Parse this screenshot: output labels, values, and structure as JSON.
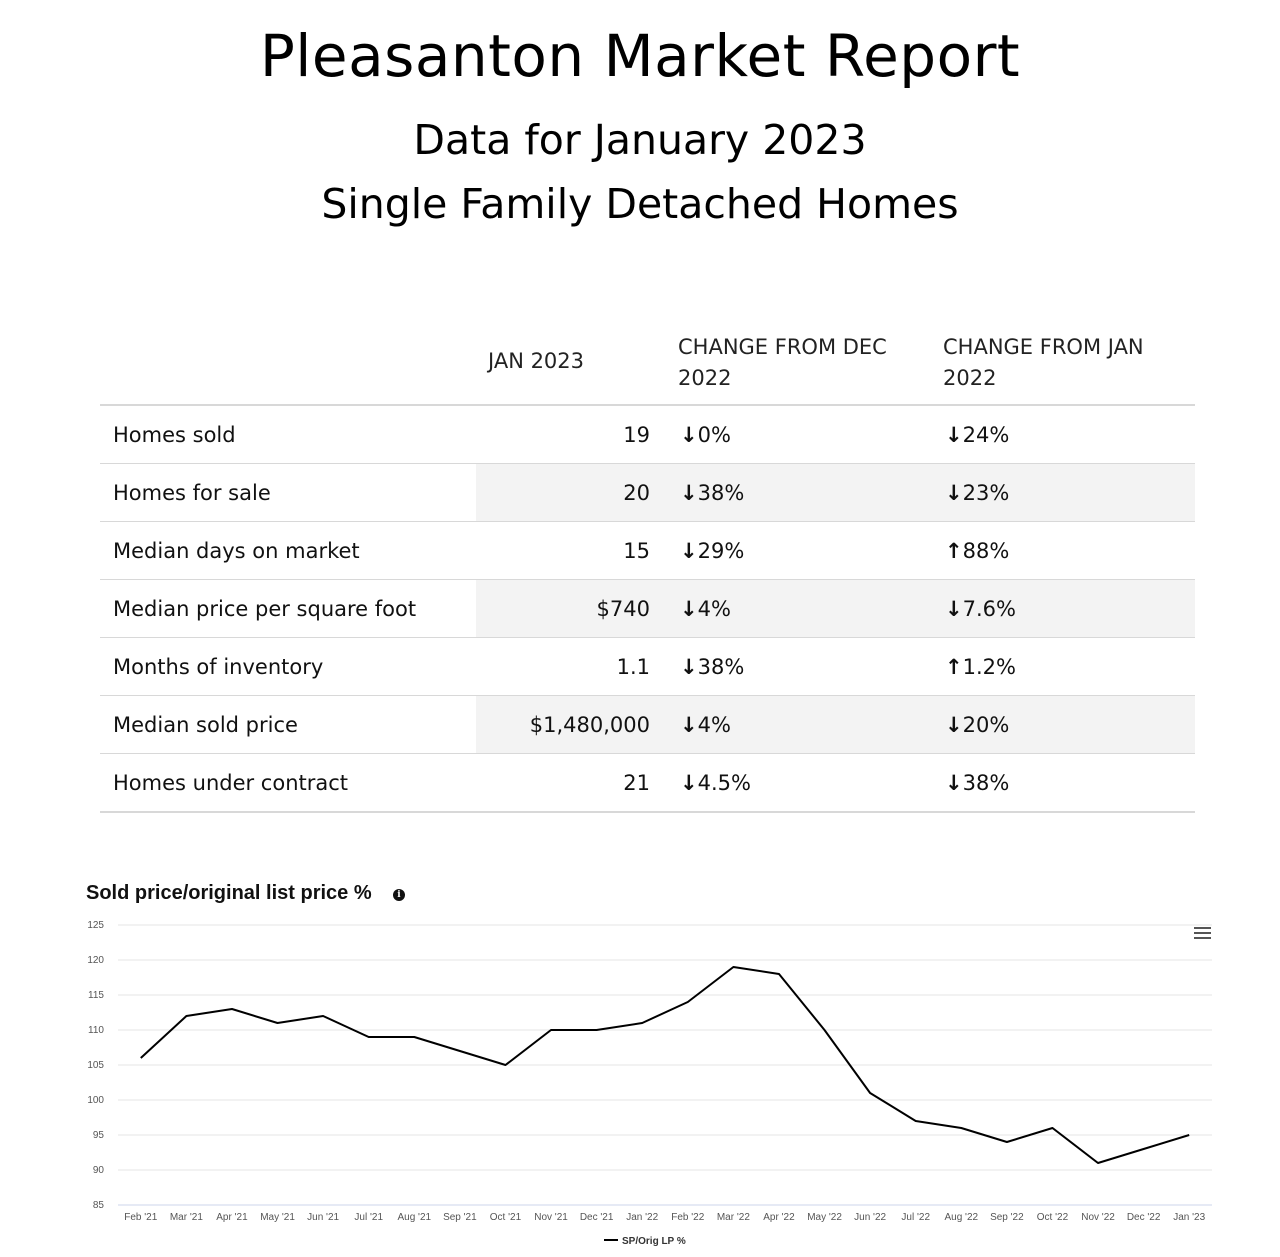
{
  "header": {
    "title": "Pleasanton Market Report",
    "subtitle1": "Data for January 2023",
    "subtitle2": "Single Family Detached Homes"
  },
  "table": {
    "columns": [
      "",
      "JAN 2023",
      "CHANGE FROM DEC 2022",
      "CHANGE FROM JAN 2022"
    ],
    "rows": [
      {
        "label": "Homes sold",
        "value": "19",
        "chg_dec": "0%",
        "dir_dec": "down",
        "chg_jan": "24%",
        "dir_jan": "down"
      },
      {
        "label": "Homes for sale",
        "value": "20",
        "chg_dec": "38%",
        "dir_dec": "down",
        "chg_jan": "23%",
        "dir_jan": "down"
      },
      {
        "label": "Median days on market",
        "value": "15",
        "chg_dec": "29%",
        "dir_dec": "down",
        "chg_jan": "88%",
        "dir_jan": "up"
      },
      {
        "label": "Median price per square foot",
        "value": "$740",
        "chg_dec": "4%",
        "dir_dec": "down",
        "chg_jan": "7.6%",
        "dir_jan": "down"
      },
      {
        "label": "Months of inventory",
        "value": "1.1",
        "chg_dec": "38%",
        "dir_dec": "down",
        "chg_jan": "1.2%",
        "dir_jan": "up"
      },
      {
        "label": "Median sold price",
        "value": "$1,480,000",
        "chg_dec": "4%",
        "dir_dec": "down",
        "chg_jan": "20%",
        "dir_jan": "down"
      },
      {
        "label": "Homes under contract",
        "value": "21",
        "chg_dec": "4.5%",
        "dir_dec": "down",
        "chg_jan": "38%",
        "dir_jan": "down"
      }
    ],
    "colors": {
      "down": "#b0122b",
      "up": "#18a05a"
    },
    "icons": {
      "down": "arrow-down-icon",
      "up": "arrow-up-icon"
    }
  },
  "chart_data": {
    "type": "line",
    "title": "Sold price/original list price %",
    "x": [
      "Feb '21",
      "Mar '21",
      "Apr '21",
      "May '21",
      "Jun '21",
      "Jul '21",
      "Aug '21",
      "Sep '21",
      "Oct '21",
      "Nov '21",
      "Dec '21",
      "Jan '22",
      "Feb '22",
      "Mar '22",
      "Apr '22",
      "May '22",
      "Jun '22",
      "Jul '22",
      "Aug '22",
      "Sep '22",
      "Oct '22",
      "Nov '22",
      "Dec '22",
      "Jan '23"
    ],
    "series": [
      {
        "name": "SP/Orig LP %",
        "color": "#000000",
        "values": [
          106,
          112,
          113,
          111,
          112,
          109,
          109,
          107,
          105,
          110,
          110,
          111,
          114,
          119,
          118,
          110,
          101,
          97,
          96,
          94,
          96,
          91,
          93,
          95
        ]
      }
    ],
    "ylim": [
      85,
      125
    ],
    "yticks": [
      85,
      90,
      95,
      100,
      105,
      110,
      115,
      120,
      125
    ],
    "grid": true,
    "legend": "bottom-center",
    "icons": [
      "info-icon",
      "menu-icon"
    ]
  }
}
